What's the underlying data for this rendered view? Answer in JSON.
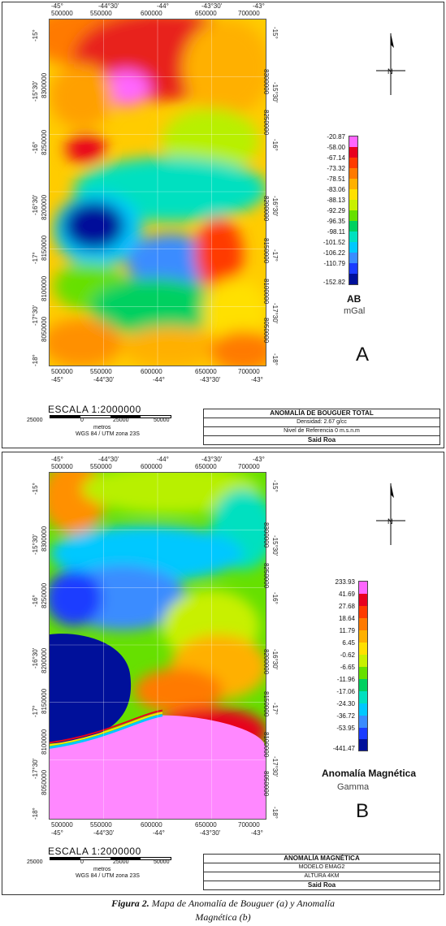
{
  "panel_a": {
    "top_ticks_deg": [
      "-45°",
      "-44°30'",
      "-44°",
      "-43°30'",
      "-43°"
    ],
    "top_ticks_utm": [
      "500000",
      "550000",
      "600000",
      "650000",
      "700000"
    ],
    "bottom_ticks_utm": [
      "500000",
      "550000",
      "600000",
      "650000",
      "700000"
    ],
    "bottom_ticks_deg": [
      "-45°",
      "-44°30'",
      "-44°",
      "-43°30'",
      "-43°"
    ],
    "left_ticks_deg": [
      "-15°",
      "-15°30'",
      "-16°",
      "-16°30'",
      "-17°",
      "-17°30'",
      "-18°"
    ],
    "left_ticks_utm": [
      "8300000",
      "8250000",
      "8200000",
      "8150000",
      "8100000",
      "8050000"
    ],
    "legend_values": [
      "-20.87",
      "-58.00",
      "-67.14",
      "-73.32",
      "-78.51",
      "-83.06",
      "-88.13",
      "-92.29",
      "-96.35",
      "-98.11",
      "-101.52",
      "-106.22",
      "-110.79",
      "-152.82"
    ],
    "legend_title": "AB",
    "legend_unit": "mGal",
    "letter": "A",
    "scale_title": "ESCALA 1:2000000",
    "scale_labels": [
      "25000",
      "0",
      "25000",
      "50000"
    ],
    "scale_unit": "metros",
    "scale_datum": "WGS 84 / UTM zona 23S",
    "title_box": [
      "ANOMALÍA DE BOUGUER TOTAL",
      "Densidad: 2.67 g/cc",
      "Nivel de Referencia 0 m.s.n.m",
      "Said Roa"
    ]
  },
  "panel_b": {
    "top_ticks_deg": [
      "-45°",
      "-44°30'",
      "-44°",
      "-43°30'",
      "-43°"
    ],
    "top_ticks_utm": [
      "500000",
      "550000",
      "600000",
      "650000",
      "700000"
    ],
    "bottom_ticks_utm": [
      "500000",
      "550000",
      "600000",
      "650000",
      "700000"
    ],
    "bottom_ticks_deg": [
      "-45°",
      "-44°30'",
      "-44°",
      "-43°30'",
      "-43°"
    ],
    "left_ticks_deg": [
      "-15°",
      "-15°30'",
      "-16°",
      "-16°30'",
      "-17°",
      "-17°30'",
      "-18°"
    ],
    "left_ticks_utm": [
      "8300000",
      "8250000",
      "8200000",
      "8150000",
      "8100000",
      "8050000"
    ],
    "legend_values": [
      "233.93",
      "41.69",
      "27.68",
      "18.64",
      "11.79",
      "6.45",
      "-0.62",
      "-6.65",
      "-11.96",
      "-17.06",
      "-24.30",
      "-36.72",
      "-53.95",
      "-441.47"
    ],
    "legend_title": "Anomalía Magnética",
    "legend_unit": "Gamma",
    "letter": "B",
    "scale_title": "ESCALA 1:2000000",
    "scale_labels": [
      "25000",
      "0",
      "25000",
      "50000"
    ],
    "scale_unit": "metros",
    "scale_datum": "WGS 84 / UTM zona 23S",
    "title_box": [
      "ANOMALÍA MAGNÉTICA",
      "MODELO EMAG2",
      "ALTURA 4KM",
      "Said Roa"
    ]
  },
  "caption": {
    "line1_bold": "Figura 2.",
    "line1": " Mapa de Anomalía de Bouguer (a) y Anomalía",
    "line2": "Magnética (b)"
  },
  "colors": {
    "scale": [
      "#ff66ff",
      "#e8001f",
      "#ff3b00",
      "#ff7a00",
      "#ffb000",
      "#ffe000",
      "#c8f000",
      "#66e000",
      "#00d060",
      "#00e0c0",
      "#00c8ff",
      "#3a8cff",
      "#1a3cff",
      "#00109a"
    ]
  }
}
